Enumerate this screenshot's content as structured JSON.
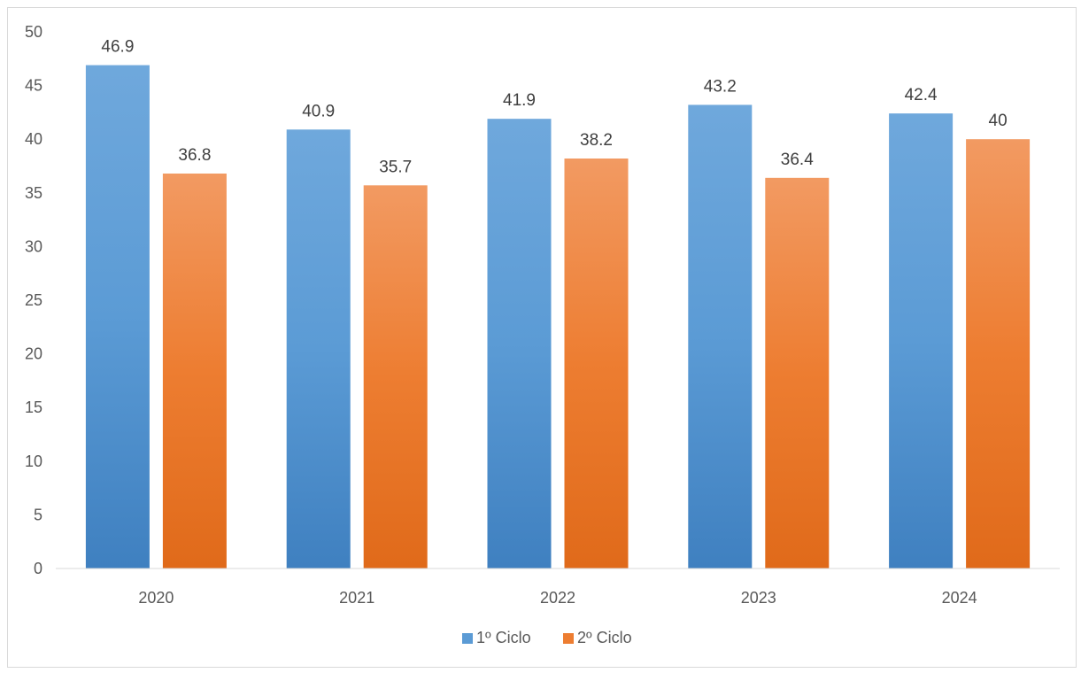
{
  "chart_data": {
    "type": "bar",
    "categories": [
      "2020",
      "2021",
      "2022",
      "2023",
      "2024"
    ],
    "series": [
      {
        "name": "1º Ciclo",
        "values": [
          46.9,
          40.9,
          41.9,
          43.2,
          42.4
        ],
        "labels": [
          "46.9",
          "40.9",
          "41.9",
          "43.2",
          "42.4"
        ],
        "color": "#5b9bd5"
      },
      {
        "name": "2º Ciclo",
        "values": [
          36.8,
          35.7,
          38.2,
          36.4,
          40
        ],
        "labels": [
          "36.8",
          "35.7",
          "38.2",
          "36.4",
          "40"
        ],
        "color": "#ed7d31"
      }
    ],
    "yticks": [
      "0",
      "5",
      "10",
      "15",
      "20",
      "25",
      "30",
      "35",
      "40",
      "45",
      "50"
    ],
    "ylim": [
      0,
      50
    ],
    "grid": false,
    "legend": "bottom",
    "title": "",
    "xlabel": "",
    "ylabel": ""
  }
}
